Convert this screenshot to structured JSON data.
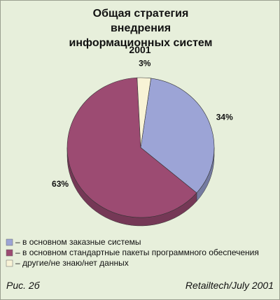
{
  "chart_data": {
    "type": "pie",
    "title": "Общая стратегия внедрения информационных систем",
    "subtitle": "2001",
    "series": [
      {
        "name": "– в основном заказные системы",
        "color": "#9ca4d6",
        "values": [
          34
        ],
        "value_labels": [
          "34%"
        ]
      },
      {
        "name": "– в основном стандартные пакеты программного обеспечения",
        "color": "#9c4b72",
        "values": [
          63
        ],
        "value_labels": [
          "63%"
        ]
      },
      {
        "name": "– другие/не знаю/нет данных",
        "color": "#f8f3d6",
        "values": [
          3
        ],
        "value_labels": [
          "3%"
        ]
      }
    ]
  },
  "figure_label": "Рис. 2б",
  "source": "Retailtech/July 2001"
}
